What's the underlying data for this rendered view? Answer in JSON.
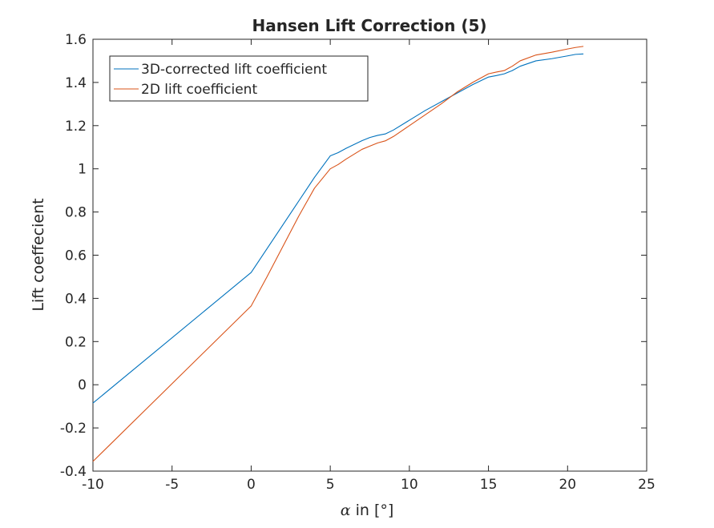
{
  "chart_data": {
    "type": "line",
    "title": "Hansen Lift Correction (5)",
    "xlabel_symbol": "α",
    "xlabel_rest": " in [°]",
    "ylabel": "Lift coeffecient",
    "xlim": [
      -10,
      25
    ],
    "ylim": [
      -0.4,
      1.6
    ],
    "xticks": [
      -10,
      -5,
      0,
      5,
      10,
      15,
      20,
      25
    ],
    "yticks": [
      -0.4,
      -0.2,
      0,
      0.2,
      0.4,
      0.6,
      0.8,
      1,
      1.2,
      1.4,
      1.6
    ],
    "grid": false,
    "legend_position": "top-left",
    "series": [
      {
        "name": "3D-corrected lift coefficient",
        "color": "#0072BD",
        "x": [
          -10,
          0,
          1,
          2,
          3,
          4,
          5,
          5.5,
          6,
          7,
          7.5,
          8,
          8.5,
          9,
          10,
          11,
          12,
          13,
          14,
          15,
          15.5,
          16,
          16.5,
          17,
          18,
          19,
          20,
          20.5,
          21
        ],
        "y": [
          -0.085,
          0.52,
          0.63,
          0.74,
          0.85,
          0.96,
          1.06,
          1.075,
          1.095,
          1.13,
          1.145,
          1.155,
          1.162,
          1.18,
          1.225,
          1.27,
          1.31,
          1.35,
          1.39,
          1.425,
          1.432,
          1.44,
          1.455,
          1.475,
          1.5,
          1.51,
          1.523,
          1.53,
          1.532
        ]
      },
      {
        "name": "2D lift coefficient",
        "color": "#D95319",
        "x": [
          -10,
          0,
          1,
          2,
          3,
          4,
          5,
          5.5,
          6,
          7,
          7.5,
          8,
          8.5,
          9,
          10,
          11,
          12,
          13,
          14,
          15,
          15.5,
          16,
          16.5,
          17,
          18,
          19,
          20,
          20.5,
          21
        ],
        "y": [
          -0.355,
          0.365,
          0.5,
          0.64,
          0.78,
          0.91,
          1.0,
          1.02,
          1.045,
          1.09,
          1.105,
          1.12,
          1.13,
          1.15,
          1.2,
          1.25,
          1.3,
          1.355,
          1.4,
          1.44,
          1.448,
          1.455,
          1.475,
          1.5,
          1.527,
          1.54,
          1.555,
          1.562,
          1.567
        ]
      }
    ]
  }
}
